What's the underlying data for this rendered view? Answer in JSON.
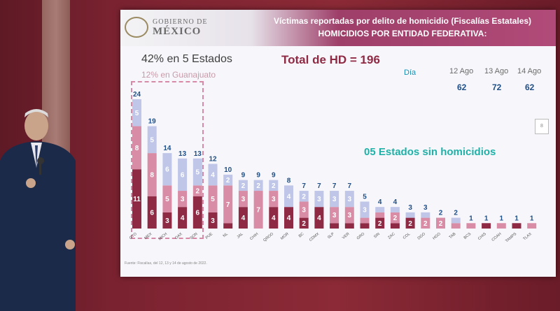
{
  "header": {
    "logo_line1": "GOBIERNO DE",
    "logo_line2": "MÉXICO",
    "title_line1": "Víctimas reportadas por delito de homicidio (Fiscalías Estatales)",
    "title_line2": "HOMICIDIOS POR ENTIDAD FEDERATIVA:"
  },
  "summary": {
    "top5": "42% en 5 Estados",
    "guanajuato": "12% en Guanajuato",
    "total": "Total de HD = 196",
    "no_homicides": "05 Estados sin homicidios"
  },
  "days": {
    "label": "Día",
    "dates": [
      "12 Ago",
      "13 Ago",
      "14 Ago"
    ],
    "values": [
      "62",
      "72",
      "62"
    ]
  },
  "source": "Fuente: Fiscalías, del 12, 13 y 14 de agosto de 2022.",
  "colors": {
    "dark": "#8e2a44",
    "medium": "#d98ca5",
    "light": "#bfc6e8",
    "total_label": "#1f4f86",
    "highlight": "#1fb1a8"
  },
  "chart_data": {
    "type": "bar",
    "stacked": true,
    "categories": [
      "GTO",
      "MEX",
      "MICH",
      "OAX",
      "SON",
      "PUE",
      "NL",
      "JAL",
      "CHIH",
      "QROO",
      "MOR",
      "BC",
      "CDMX",
      "SLP",
      "VER",
      "GRO",
      "SIN",
      "ZAC",
      "COL",
      "DGO",
      "HGO",
      "TAB",
      "BCS",
      "CHIS",
      "COAH",
      "TAMPS",
      "TLAX"
    ],
    "totals": [
      24,
      19,
      14,
      13,
      13,
      12,
      10,
      9,
      9,
      9,
      8,
      7,
      7,
      7,
      7,
      5,
      4,
      4,
      3,
      3,
      2,
      2,
      1,
      1,
      1,
      1,
      1
    ],
    "series": [
      {
        "values": [
          11,
          6,
          3,
          4,
          6,
          3,
          1,
          4,
          0,
          4,
          4,
          2,
          4,
          1,
          1,
          1,
          2,
          1,
          2,
          0,
          0,
          0,
          0,
          1,
          0,
          1,
          0
        ]
      },
      {
        "values": [
          8,
          8,
          5,
          3,
          2,
          5,
          7,
          3,
          7,
          3,
          0,
          3,
          0,
          3,
          3,
          1,
          1,
          2,
          0,
          2,
          2,
          1,
          1,
          0,
          1,
          0,
          1
        ]
      },
      {
        "values": [
          5,
          5,
          6,
          6,
          5,
          4,
          2,
          2,
          2,
          2,
          4,
          2,
          3,
          3,
          3,
          3,
          1,
          1,
          1,
          1,
          0,
          1,
          0,
          0,
          0,
          0,
          0
        ]
      }
    ],
    "ylim": [
      0,
      24
    ]
  }
}
